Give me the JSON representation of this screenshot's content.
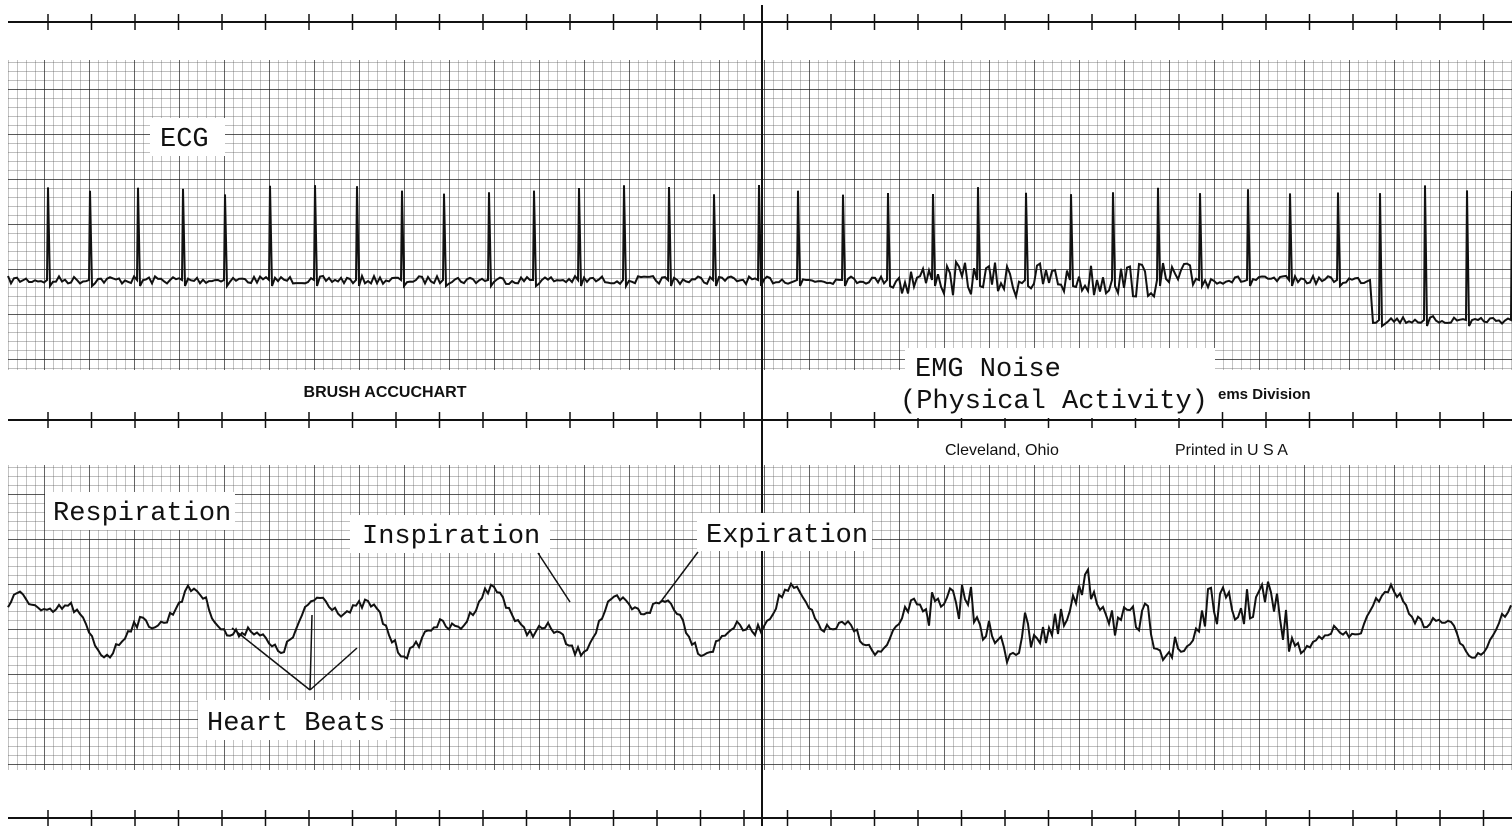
{
  "ecg_panel": {
    "label": "ECG",
    "noise_label": [
      "EMG Noise",
      "(Physical Activity)"
    ]
  },
  "paper": {
    "brand": "BRUSH ACCUCHART",
    "division": "ems Division",
    "city": "Cleveland, Ohio",
    "printed": "Printed in U S A"
  },
  "respiration_panel": {
    "label": "Respiration",
    "inspiration": "Inspiration",
    "expiration": "Expiration",
    "heart_beats": "Heart Beats"
  }
}
